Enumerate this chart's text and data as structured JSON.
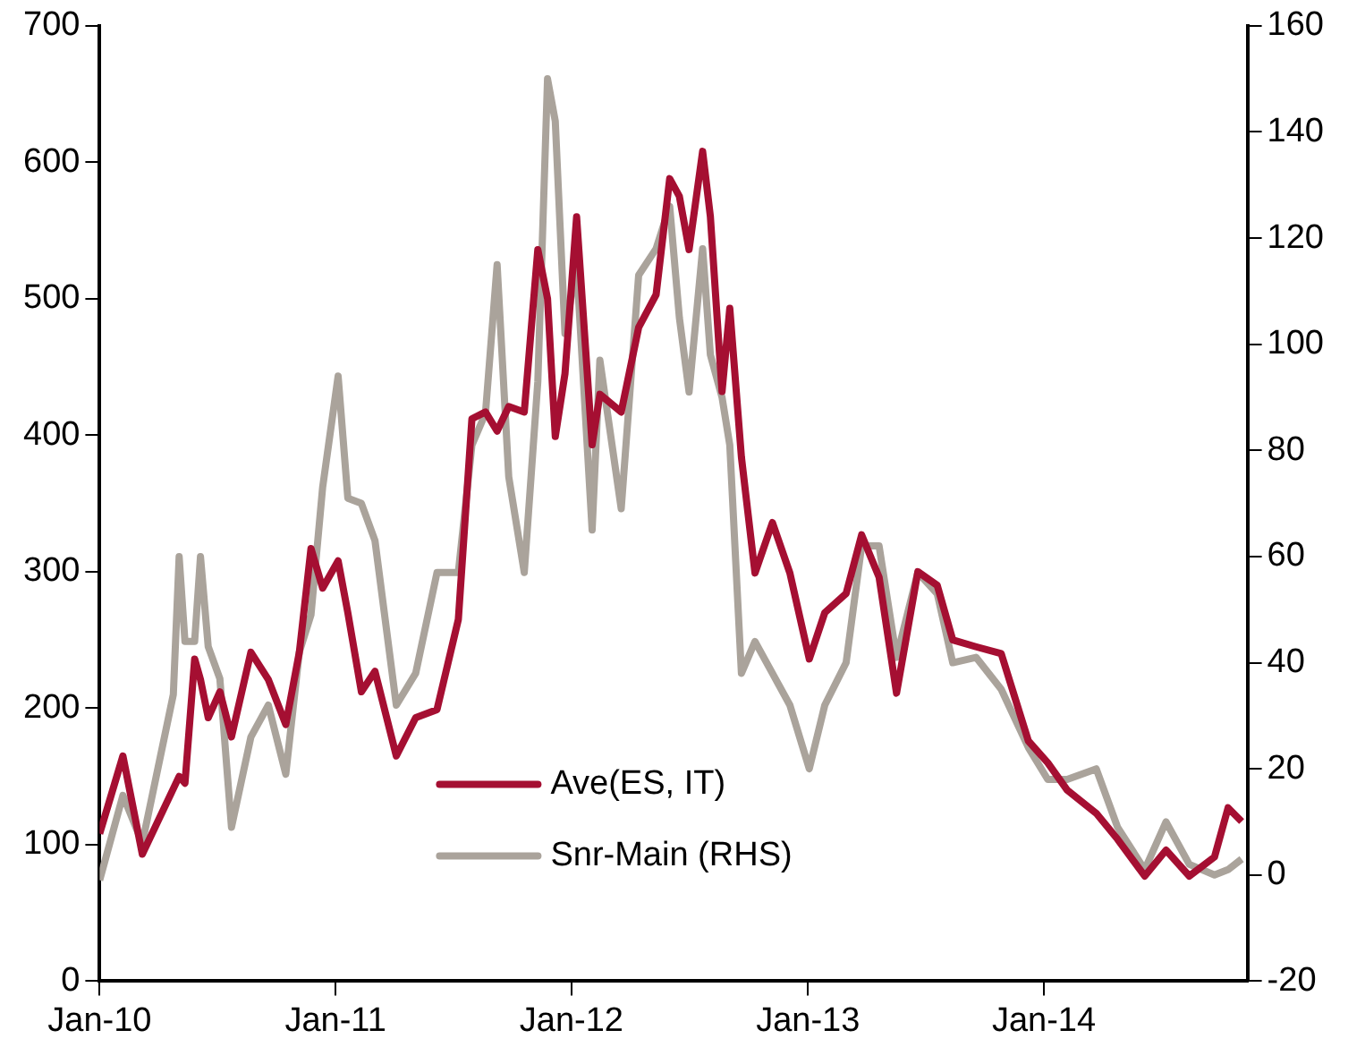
{
  "chart_data": {
    "type": "line",
    "x": [
      "2010-01-01",
      "2010-02-06",
      "2010-03-08",
      "2010-04-25",
      "2010-05-04",
      "2010-05-13",
      "2010-05-28",
      "2010-06-06",
      "2010-06-18",
      "2010-07-06",
      "2010-07-24",
      "2010-08-23",
      "2010-09-19",
      "2010-10-16",
      "2010-11-06",
      "2010-11-24",
      "2010-12-12",
      "2011-01-05",
      "2011-01-20",
      "2011-02-10",
      "2011-03-03",
      "2011-04-05",
      "2011-05-05",
      "2011-06-07",
      "2011-07-10",
      "2011-07-31",
      "2011-08-21",
      "2011-09-08",
      "2011-09-26",
      "2011-10-20",
      "2011-11-10",
      "2011-11-25",
      "2011-12-07",
      "2011-12-22",
      "2012-01-09",
      "2012-02-02",
      "2012-02-14",
      "2012-03-18",
      "2012-04-14",
      "2012-05-11",
      "2012-06-01",
      "2012-06-16",
      "2012-07-01",
      "2012-07-22",
      "2012-08-03",
      "2012-08-21",
      "2012-09-02",
      "2012-09-20",
      "2012-10-11",
      "2012-11-07",
      "2012-12-04",
      "2013-01-03",
      "2013-01-27",
      "2013-03-01",
      "2013-03-25",
      "2013-04-21",
      "2013-05-18",
      "2013-06-20",
      "2013-07-20",
      "2013-08-13",
      "2013-09-18",
      "2013-10-27",
      "2013-12-08",
      "2014-01-07",
      "2014-02-06",
      "2014-03-23",
      "2014-04-25",
      "2014-06-06",
      "2014-07-09",
      "2014-08-14",
      "2014-09-22",
      "2014-10-13",
      "2014-11-03"
    ],
    "series": [
      {
        "name": "Ave(ES, IT)",
        "color": "#a50f32",
        "values": [
          108,
          165,
          93,
          141,
          150,
          145,
          236,
          221,
          193,
          212,
          179,
          241,
          221,
          188,
          241,
          317,
          288,
          308,
          270,
          212,
          227,
          165,
          193,
          199,
          265,
          412,
          417,
          403,
          421,
          417,
          536,
          500,
          399,
          445,
          560,
          393,
          430,
          417,
          479,
          503,
          588,
          575,
          536,
          608,
          560,
          432,
          493,
          384,
          299,
          336,
          299,
          236,
          270,
          284,
          327,
          296,
          211,
          300,
          290,
          250,
          245,
          240,
          176,
          160,
          140,
          123,
          104,
          77,
          96,
          77,
          91,
          127,
          117
        ]
      },
      {
        "name": "Snr-Main (RHS)",
        "color": "#aaa39b",
        "axis": "y2",
        "values": [
          -1,
          15,
          6,
          34,
          60,
          44,
          44,
          60,
          43,
          37,
          9,
          26,
          32,
          19,
          42,
          49,
          73,
          94,
          71,
          70,
          63,
          32,
          38,
          57,
          57,
          81,
          87,
          115,
          75,
          57,
          93,
          150,
          142,
          102,
          115,
          65,
          97,
          69,
          113,
          118,
          126,
          105,
          91,
          118,
          98,
          90,
          81,
          38,
          44,
          38,
          32,
          20,
          32,
          40,
          62,
          62,
          41,
          57,
          53,
          40,
          41,
          35,
          24,
          18,
          18,
          20,
          9,
          1,
          10,
          2,
          0,
          1,
          3
        ]
      }
    ],
    "xlim": [
      "2010-01-01",
      "2014-11-12"
    ],
    "xticks": [
      {
        "value": "2010-01-01",
        "label": "Jan-10"
      },
      {
        "value": "2011-01-01",
        "label": "Jan-11"
      },
      {
        "value": "2012-01-01",
        "label": "Jan-12"
      },
      {
        "value": "2013-01-01",
        "label": "Jan-13"
      },
      {
        "value": "2014-01-01",
        "label": "Jan-14"
      }
    ],
    "ylim": [
      0,
      700
    ],
    "yticks": [
      0,
      100,
      200,
      300,
      400,
      500,
      600,
      700
    ],
    "y2lim": [
      -20,
      160
    ],
    "y2ticks": [
      -20,
      0,
      20,
      40,
      60,
      80,
      100,
      120,
      140,
      160
    ],
    "grid": false,
    "legend": "bottom",
    "marker": "none",
    "line_style": "solid"
  }
}
